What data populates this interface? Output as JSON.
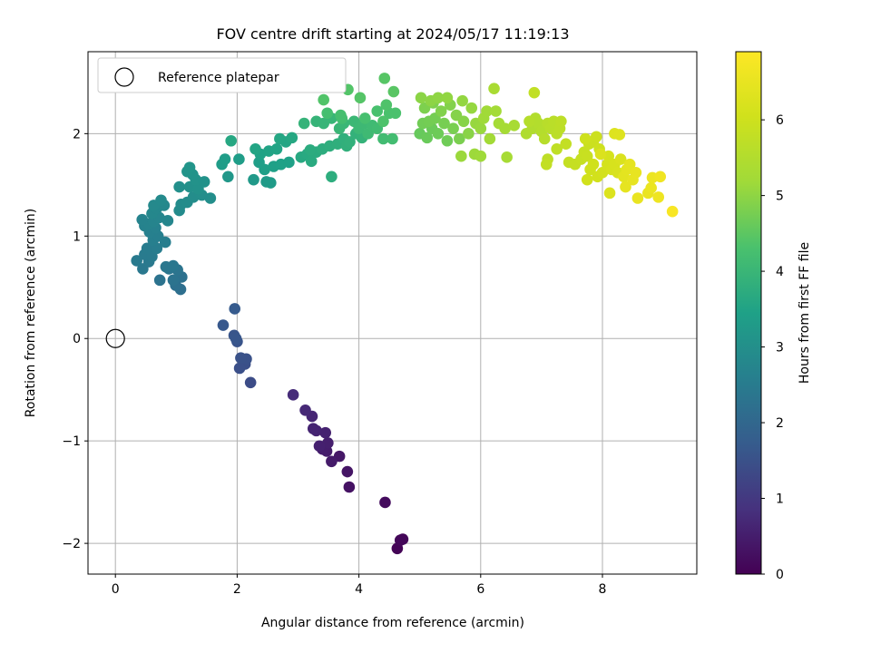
{
  "chart_data": {
    "type": "scatter",
    "title": "FOV centre drift starting at 2024/05/17 11:19:13",
    "xlabel": "Angular distance from reference (arcmin)",
    "ylabel": "Rotation from reference (arcmin)",
    "xlim": [
      -0.45,
      9.55
    ],
    "ylim": [
      -2.3,
      2.8
    ],
    "xticks": [
      0,
      2,
      4,
      6,
      8
    ],
    "yticks": [
      -2,
      -1,
      0,
      1,
      2
    ],
    "grid": true,
    "colormap": "viridis",
    "colorbar": {
      "label": "Hours from first FF file",
      "range": [
        0,
        6.9
      ],
      "ticks": [
        0,
        1,
        2,
        3,
        4,
        5,
        6
      ]
    },
    "legend": {
      "placement": "top-left",
      "entries": [
        "Reference platepar"
      ]
    },
    "reference_point": {
      "x": 0,
      "y": 0,
      "label": "Reference platepar"
    },
    "series": [
      {
        "points": [
          [
            4.63,
            -2.05,
            0.05
          ],
          [
            4.72,
            -1.96,
            0.08
          ],
          [
            4.68,
            -1.97,
            0.1
          ],
          [
            4.43,
            -1.6,
            0.18
          ],
          [
            3.84,
            -1.45,
            0.3
          ],
          [
            3.81,
            -1.3,
            0.35
          ],
          [
            3.68,
            -1.15,
            0.4
          ],
          [
            3.55,
            -1.2,
            0.45
          ],
          [
            3.47,
            -1.1,
            0.48
          ],
          [
            3.4,
            -1.08,
            0.5
          ],
          [
            3.49,
            -1.02,
            0.52
          ],
          [
            3.35,
            -1.05,
            0.55
          ],
          [
            3.45,
            -0.92,
            0.58
          ],
          [
            3.3,
            -0.9,
            0.6
          ],
          [
            3.25,
            -0.88,
            0.62
          ],
          [
            3.23,
            -0.76,
            0.65
          ],
          [
            3.12,
            -0.7,
            0.7
          ],
          [
            2.92,
            -0.55,
            0.75
          ],
          [
            2.22,
            -0.43,
            1.4
          ],
          [
            2.13,
            -0.25,
            1.45
          ],
          [
            2.04,
            -0.29,
            1.48
          ],
          [
            2.15,
            -0.2,
            1.5
          ],
          [
            2.06,
            -0.19,
            1.52
          ],
          [
            2.0,
            -0.03,
            1.55
          ],
          [
            1.95,
            0.03,
            1.58
          ],
          [
            1.98,
            0.0,
            1.6
          ],
          [
            1.77,
            0.13,
            1.65
          ],
          [
            1.96,
            0.29,
            1.7
          ],
          [
            1.07,
            0.48,
            2.2
          ],
          [
            0.99,
            0.52,
            2.22
          ],
          [
            1.09,
            0.6,
            2.25
          ],
          [
            0.95,
            0.57,
            2.28
          ],
          [
            0.73,
            0.57,
            2.3
          ],
          [
            1.02,
            0.67,
            2.32
          ],
          [
            0.88,
            0.68,
            2.35
          ],
          [
            0.83,
            0.7,
            2.38
          ],
          [
            0.95,
            0.71,
            2.4
          ],
          [
            0.45,
            0.68,
            2.42
          ],
          [
            0.55,
            0.75,
            2.44
          ],
          [
            0.35,
            0.76,
            2.46
          ],
          [
            0.48,
            0.82,
            2.48
          ],
          [
            0.6,
            0.8,
            2.5
          ],
          [
            0.52,
            0.88,
            2.52
          ],
          [
            0.68,
            0.88,
            2.54
          ],
          [
            0.82,
            0.94,
            2.56
          ],
          [
            0.62,
            0.96,
            2.58
          ],
          [
            0.7,
            1.0,
            2.6
          ],
          [
            0.56,
            1.04,
            2.62
          ],
          [
            0.66,
            1.08,
            2.64
          ],
          [
            0.48,
            1.1,
            2.66
          ],
          [
            0.55,
            1.12,
            2.68
          ],
          [
            0.44,
            1.16,
            2.7
          ],
          [
            0.63,
            1.14,
            2.72
          ],
          [
            0.72,
            1.18,
            2.74
          ],
          [
            0.86,
            1.15,
            2.76
          ],
          [
            0.6,
            1.22,
            2.78
          ],
          [
            0.68,
            1.27,
            2.8
          ],
          [
            0.8,
            1.3,
            2.82
          ],
          [
            0.63,
            1.3,
            2.84
          ],
          [
            0.75,
            1.35,
            2.86
          ],
          [
            1.05,
            1.25,
            2.88
          ],
          [
            1.08,
            1.31,
            2.9
          ],
          [
            1.18,
            1.33,
            2.92
          ],
          [
            1.28,
            1.38,
            2.94
          ],
          [
            1.42,
            1.4,
            2.96
          ],
          [
            1.56,
            1.37,
            2.98
          ],
          [
            1.05,
            1.48,
            3.0
          ],
          [
            1.22,
            1.48,
            3.02
          ],
          [
            1.36,
            1.46,
            3.04
          ],
          [
            1.32,
            1.55,
            3.06
          ],
          [
            1.46,
            1.53,
            3.08
          ],
          [
            1.27,
            1.6,
            3.1
          ],
          [
            1.18,
            1.63,
            3.12
          ],
          [
            1.22,
            1.67,
            3.14
          ],
          [
            1.85,
            1.58,
            3.2
          ],
          [
            2.27,
            1.55,
            3.25
          ],
          [
            2.48,
            1.53,
            3.28
          ],
          [
            2.55,
            1.52,
            3.3
          ],
          [
            1.75,
            1.7,
            3.32
          ],
          [
            1.8,
            1.75,
            3.34
          ],
          [
            2.03,
            1.75,
            3.36
          ],
          [
            2.36,
            1.72,
            3.38
          ],
          [
            2.45,
            1.65,
            3.4
          ],
          [
            2.6,
            1.68,
            3.42
          ],
          [
            2.72,
            1.7,
            3.44
          ],
          [
            2.85,
            1.72,
            3.46
          ],
          [
            2.38,
            1.8,
            3.48
          ],
          [
            2.52,
            1.83,
            3.5
          ],
          [
            2.65,
            1.85,
            3.52
          ],
          [
            2.3,
            1.85,
            3.54
          ],
          [
            2.8,
            1.92,
            3.56
          ],
          [
            2.7,
            1.95,
            3.58
          ],
          [
            2.9,
            1.96,
            3.6
          ],
          [
            1.9,
            1.93,
            3.62
          ],
          [
            3.05,
            1.77,
            3.64
          ],
          [
            3.15,
            1.8,
            3.66
          ],
          [
            3.22,
            1.73,
            3.68
          ],
          [
            3.3,
            1.82,
            3.7
          ],
          [
            3.2,
            1.84,
            3.72
          ],
          [
            3.4,
            1.85,
            3.74
          ],
          [
            3.55,
            1.58,
            3.76
          ],
          [
            3.52,
            1.88,
            3.78
          ],
          [
            3.65,
            1.9,
            3.8
          ],
          [
            3.75,
            1.95,
            3.82
          ],
          [
            3.8,
            1.88,
            3.84
          ],
          [
            3.85,
            1.92,
            3.86
          ],
          [
            3.95,
            2.0,
            3.88
          ],
          [
            4.05,
            1.96,
            3.9
          ],
          [
            3.1,
            2.1,
            3.92
          ],
          [
            3.3,
            2.12,
            3.94
          ],
          [
            3.42,
            2.1,
            3.96
          ],
          [
            3.55,
            2.15,
            3.98
          ],
          [
            3.68,
            2.05,
            4.0
          ],
          [
            3.75,
            2.1,
            4.02
          ],
          [
            3.92,
            2.12,
            4.04
          ],
          [
            4.0,
            2.05,
            4.06
          ],
          [
            4.08,
            2.1,
            4.08
          ],
          [
            4.15,
            2.0,
            4.1
          ],
          [
            4.22,
            2.08,
            4.12
          ],
          [
            4.3,
            2.05,
            4.14
          ],
          [
            4.4,
            1.95,
            4.16
          ],
          [
            4.55,
            1.95,
            4.18
          ],
          [
            3.72,
            2.15,
            4.2
          ],
          [
            3.48,
            2.2,
            4.22
          ],
          [
            3.7,
            2.18,
            4.24
          ],
          [
            4.1,
            2.15,
            4.26
          ],
          [
            4.3,
            2.22,
            4.28
          ],
          [
            4.5,
            2.2,
            4.3
          ],
          [
            4.6,
            2.2,
            4.32
          ],
          [
            4.4,
            2.12,
            4.34
          ],
          [
            4.45,
            2.28,
            4.36
          ],
          [
            3.42,
            2.33,
            4.38
          ],
          [
            3.82,
            2.43,
            4.4
          ],
          [
            4.02,
            2.35,
            4.42
          ],
          [
            4.42,
            2.54,
            4.44
          ],
          [
            4.57,
            2.41,
            4.46
          ],
          [
            5.0,
            2.0,
            4.6
          ],
          [
            5.12,
            1.96,
            4.62
          ],
          [
            5.2,
            2.05,
            4.64
          ],
          [
            5.3,
            2.0,
            4.66
          ],
          [
            5.45,
            1.93,
            4.68
          ],
          [
            5.05,
            2.1,
            4.7
          ],
          [
            5.15,
            2.12,
            4.72
          ],
          [
            5.25,
            2.15,
            4.74
          ],
          [
            5.4,
            2.1,
            4.76
          ],
          [
            5.55,
            2.05,
            4.78
          ],
          [
            5.65,
            1.95,
            4.8
          ],
          [
            5.08,
            2.25,
            4.82
          ],
          [
            5.22,
            2.3,
            4.84
          ],
          [
            5.35,
            2.22,
            4.86
          ],
          [
            5.5,
            2.28,
            4.88
          ],
          [
            5.6,
            2.18,
            4.9
          ],
          [
            5.72,
            2.12,
            4.92
          ],
          [
            5.8,
            2.0,
            4.94
          ],
          [
            5.02,
            2.35,
            4.96
          ],
          [
            5.18,
            2.32,
            4.98
          ],
          [
            5.3,
            2.35,
            5.0
          ],
          [
            5.45,
            2.35,
            5.02
          ],
          [
            5.7,
            2.32,
            5.04
          ],
          [
            5.85,
            2.25,
            5.06
          ],
          [
            5.92,
            2.1,
            5.08
          ],
          [
            6.0,
            2.05,
            5.1
          ],
          [
            5.68,
            1.78,
            5.12
          ],
          [
            5.9,
            1.8,
            5.14
          ],
          [
            6.0,
            1.78,
            5.16
          ],
          [
            6.05,
            2.15,
            5.18
          ],
          [
            6.1,
            2.22,
            5.2
          ],
          [
            6.15,
            1.95,
            5.22
          ],
          [
            6.25,
            2.22,
            5.24
          ],
          [
            6.3,
            2.1,
            5.26
          ],
          [
            6.4,
            2.05,
            5.28
          ],
          [
            6.43,
            1.77,
            5.3
          ],
          [
            6.55,
            2.08,
            5.32
          ],
          [
            6.22,
            2.44,
            5.34
          ],
          [
            6.75,
            2.0,
            5.45
          ],
          [
            6.85,
            2.05,
            5.48
          ],
          [
            6.9,
            2.15,
            5.5
          ],
          [
            6.95,
            2.1,
            5.52
          ],
          [
            7.0,
            2.02,
            5.54
          ],
          [
            6.8,
            2.12,
            5.56
          ],
          [
            7.05,
            1.95,
            5.58
          ],
          [
            7.1,
            2.1,
            5.6
          ],
          [
            7.15,
            2.05,
            5.62
          ],
          [
            7.2,
            2.12,
            5.64
          ],
          [
            7.25,
            2.0,
            5.66
          ],
          [
            7.3,
            2.05,
            5.68
          ],
          [
            7.32,
            2.12,
            5.7
          ],
          [
            7.1,
            1.75,
            5.72
          ],
          [
            7.25,
            1.85,
            5.74
          ],
          [
            6.88,
            2.4,
            5.76
          ],
          [
            7.08,
            1.7,
            5.78
          ],
          [
            7.4,
            1.9,
            5.8
          ],
          [
            7.45,
            1.72,
            5.82
          ],
          [
            7.55,
            1.7,
            5.84
          ],
          [
            7.65,
            1.75,
            5.86
          ],
          [
            7.7,
            1.82,
            5.88
          ],
          [
            7.75,
            1.78,
            5.9
          ],
          [
            7.78,
            1.9,
            5.92
          ],
          [
            7.85,
            1.92,
            5.94
          ],
          [
            7.9,
            1.97,
            5.96
          ],
          [
            7.95,
            1.85,
            5.98
          ],
          [
            7.72,
            1.95,
            6.0
          ],
          [
            7.8,
            1.65,
            6.02
          ],
          [
            7.85,
            1.7,
            6.04
          ],
          [
            7.75,
            1.55,
            6.06
          ],
          [
            7.92,
            1.58,
            6.08
          ],
          [
            8.0,
            1.62,
            6.1
          ],
          [
            8.08,
            1.7,
            6.12
          ],
          [
            8.1,
            1.78,
            6.14
          ],
          [
            8.15,
            1.65,
            6.16
          ],
          [
            8.2,
            1.7,
            6.18
          ],
          [
            8.25,
            1.62,
            6.2
          ],
          [
            8.3,
            1.75,
            6.22
          ],
          [
            7.97,
            1.8,
            6.24
          ],
          [
            8.12,
            1.42,
            6.26
          ],
          [
            8.2,
            2.0,
            6.28
          ],
          [
            8.28,
            1.99,
            6.3
          ],
          [
            8.35,
            1.58,
            6.4
          ],
          [
            8.4,
            1.65,
            6.42
          ],
          [
            8.45,
            1.7,
            6.44
          ],
          [
            8.38,
            1.48,
            6.46
          ],
          [
            8.5,
            1.55,
            6.48
          ],
          [
            8.55,
            1.62,
            6.5
          ],
          [
            8.58,
            1.37,
            6.52
          ],
          [
            8.75,
            1.42,
            6.54
          ],
          [
            8.8,
            1.47,
            6.56
          ],
          [
            8.82,
            1.57,
            6.58
          ],
          [
            8.92,
            1.38,
            6.62
          ],
          [
            8.95,
            1.58,
            6.66
          ],
          [
            9.15,
            1.24,
            6.8
          ]
        ]
      }
    ]
  }
}
